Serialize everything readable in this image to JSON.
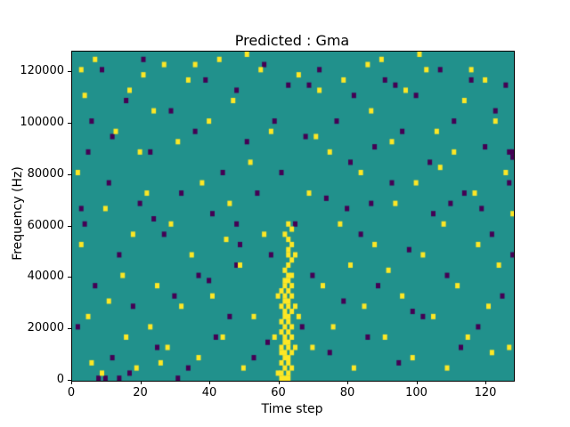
{
  "chart_data": {
    "type": "heatmap",
    "title": "Predicted : Gma",
    "xlabel": "Time step",
    "ylabel": "Frequency (Hz)",
    "xlim": [
      0,
      128
    ],
    "ylim": [
      0,
      128000
    ],
    "xticks": [
      0,
      20,
      40,
      60,
      80,
      100,
      120
    ],
    "yticks": [
      0,
      20000,
      40000,
      60000,
      80000,
      100000,
      120000
    ],
    "grid": false,
    "legend": "none",
    "colors": {
      "background": "#21918c",
      "high": "#fde725",
      "low": "#440154",
      "axes": "#000000"
    },
    "x_bins": 128,
    "y_bins": 64,
    "y_bin_hz": 2000,
    "cells_high": [
      [
        59,
        1
      ],
      [
        60,
        0
      ],
      [
        61,
        0
      ],
      [
        62,
        0
      ],
      [
        60,
        1
      ],
      [
        62,
        1
      ],
      [
        61,
        2
      ],
      [
        63,
        2
      ],
      [
        60,
        3
      ],
      [
        62,
        3
      ],
      [
        61,
        4
      ],
      [
        62,
        4
      ],
      [
        60,
        5
      ],
      [
        61,
        5
      ],
      [
        63,
        5
      ],
      [
        62,
        6
      ],
      [
        60,
        6
      ],
      [
        61,
        7
      ],
      [
        62,
        7
      ],
      [
        63,
        8
      ],
      [
        61,
        8
      ],
      [
        60,
        9
      ],
      [
        62,
        9
      ],
      [
        61,
        10
      ],
      [
        63,
        10
      ],
      [
        62,
        11
      ],
      [
        60,
        11
      ],
      [
        61,
        12
      ],
      [
        62,
        12
      ],
      [
        63,
        13
      ],
      [
        61,
        13
      ],
      [
        62,
        14
      ],
      [
        60,
        14
      ],
      [
        64,
        14
      ],
      [
        61,
        15
      ],
      [
        62,
        15
      ],
      [
        63,
        16
      ],
      [
        61,
        16
      ],
      [
        62,
        17
      ],
      [
        60,
        17
      ],
      [
        61,
        18
      ],
      [
        63,
        18
      ],
      [
        62,
        19
      ],
      [
        61,
        19
      ],
      [
        62,
        20
      ],
      [
        63,
        20
      ],
      [
        61,
        21
      ],
      [
        62,
        22
      ],
      [
        63,
        23
      ],
      [
        62,
        24
      ],
      [
        64,
        24
      ],
      [
        62,
        25
      ],
      [
        63,
        26
      ],
      [
        62,
        27
      ],
      [
        61,
        28
      ],
      [
        63,
        29
      ],
      [
        62,
        30
      ],
      [
        58,
        8
      ],
      [
        59,
        16
      ],
      [
        65,
        12
      ],
      [
        64,
        6
      ],
      [
        2,
        60
      ],
      [
        3,
        55
      ],
      [
        1,
        40
      ],
      [
        2,
        26
      ],
      [
        4,
        12
      ],
      [
        5,
        3
      ],
      [
        8,
        1
      ],
      [
        9,
        33
      ],
      [
        12,
        48
      ],
      [
        14,
        20
      ],
      [
        15,
        8
      ],
      [
        16,
        56
      ],
      [
        17,
        28
      ],
      [
        18,
        2
      ],
      [
        19,
        44
      ],
      [
        21,
        36
      ],
      [
        22,
        10
      ],
      [
        23,
        52
      ],
      [
        24,
        18
      ],
      [
        26,
        61
      ],
      [
        27,
        6
      ],
      [
        28,
        30
      ],
      [
        30,
        46
      ],
      [
        31,
        14
      ],
      [
        33,
        58
      ],
      [
        34,
        24
      ],
      [
        36,
        4
      ],
      [
        37,
        38
      ],
      [
        39,
        50
      ],
      [
        40,
        16
      ],
      [
        42,
        62
      ],
      [
        43,
        8
      ],
      [
        45,
        34
      ],
      [
        46,
        54
      ],
      [
        48,
        22
      ],
      [
        49,
        2
      ],
      [
        51,
        42
      ],
      [
        52,
        12
      ],
      [
        54,
        60
      ],
      [
        55,
        28
      ],
      [
        57,
        48
      ],
      [
        68,
        36
      ],
      [
        69,
        6
      ],
      [
        71,
        56
      ],
      [
        72,
        18
      ],
      [
        74,
        44
      ],
      [
        75,
        10
      ],
      [
        77,
        30
      ],
      [
        78,
        58
      ],
      [
        80,
        22
      ],
      [
        81,
        2
      ],
      [
        83,
        40
      ],
      [
        84,
        14
      ],
      [
        86,
        52
      ],
      [
        87,
        26
      ],
      [
        89,
        62
      ],
      [
        90,
        8
      ],
      [
        92,
        46
      ],
      [
        93,
        34
      ],
      [
        95,
        16
      ],
      [
        96,
        56
      ],
      [
        98,
        4
      ],
      [
        99,
        38
      ],
      [
        101,
        24
      ],
      [
        102,
        60
      ],
      [
        104,
        12
      ],
      [
        105,
        48
      ],
      [
        107,
        30
      ],
      [
        108,
        2
      ],
      [
        110,
        44
      ],
      [
        111,
        18
      ],
      [
        113,
        54
      ],
      [
        114,
        8
      ],
      [
        116,
        36
      ],
      [
        117,
        26
      ],
      [
        119,
        58
      ],
      [
        120,
        14
      ],
      [
        122,
        50
      ],
      [
        123,
        22
      ],
      [
        125,
        40
      ],
      [
        126,
        6
      ],
      [
        127,
        32
      ],
      [
        6,
        62
      ],
      [
        20,
        59
      ],
      [
        35,
        61
      ],
      [
        50,
        63
      ],
      [
        65,
        59
      ],
      [
        85,
        61
      ],
      [
        100,
        63
      ],
      [
        115,
        60
      ],
      [
        10,
        15
      ],
      [
        25,
        3
      ],
      [
        44,
        27
      ],
      [
        70,
        47
      ],
      [
        91,
        21
      ],
      [
        106,
        41
      ],
      [
        121,
        5
      ]
    ],
    "cells_low": [
      [
        1,
        10
      ],
      [
        3,
        30
      ],
      [
        5,
        50
      ],
      [
        6,
        18
      ],
      [
        8,
        60
      ],
      [
        10,
        38
      ],
      [
        11,
        4
      ],
      [
        13,
        24
      ],
      [
        15,
        54
      ],
      [
        17,
        14
      ],
      [
        19,
        34
      ],
      [
        20,
        62
      ],
      [
        22,
        44
      ],
      [
        24,
        6
      ],
      [
        26,
        28
      ],
      [
        28,
        52
      ],
      [
        29,
        16
      ],
      [
        31,
        36
      ],
      [
        33,
        2
      ],
      [
        35,
        48
      ],
      [
        36,
        20
      ],
      [
        38,
        58
      ],
      [
        40,
        32
      ],
      [
        41,
        8
      ],
      [
        43,
        40
      ],
      [
        45,
        12
      ],
      [
        47,
        56
      ],
      [
        47,
        30
      ],
      [
        47,
        22
      ],
      [
        48,
        26
      ],
      [
        50,
        46
      ],
      [
        52,
        4
      ],
      [
        53,
        36
      ],
      [
        55,
        61
      ],
      [
        57,
        24
      ],
      [
        58,
        50
      ],
      [
        60,
        40
      ],
      [
        62,
        57
      ],
      [
        64,
        30
      ],
      [
        66,
        10
      ],
      [
        67,
        47
      ],
      [
        69,
        20
      ],
      [
        71,
        60
      ],
      [
        73,
        35
      ],
      [
        74,
        5
      ],
      [
        76,
        50
      ],
      [
        78,
        15
      ],
      [
        80,
        42
      ],
      [
        81,
        55
      ],
      [
        83,
        28
      ],
      [
        85,
        8
      ],
      [
        87,
        45
      ],
      [
        88,
        18
      ],
      [
        90,
        58
      ],
      [
        92,
        38
      ],
      [
        94,
        3
      ],
      [
        95,
        48
      ],
      [
        97,
        25
      ],
      [
        99,
        55
      ],
      [
        101,
        12
      ],
      [
        103,
        42
      ],
      [
        104,
        32
      ],
      [
        106,
        60
      ],
      [
        108,
        20
      ],
      [
        110,
        50
      ],
      [
        112,
        6
      ],
      [
        113,
        36
      ],
      [
        115,
        58
      ],
      [
        117,
        10
      ],
      [
        119,
        45
      ],
      [
        121,
        28
      ],
      [
        122,
        52
      ],
      [
        124,
        16
      ],
      [
        126,
        38
      ],
      [
        127,
        24
      ],
      [
        127,
        43
      ],
      [
        127,
        44
      ],
      [
        126,
        44
      ],
      [
        7,
        0
      ],
      [
        9,
        0
      ],
      [
        13,
        0
      ],
      [
        30,
        0
      ],
      [
        16,
        1
      ],
      [
        2,
        33
      ],
      [
        4,
        44
      ],
      [
        11,
        47
      ],
      [
        23,
        31
      ],
      [
        39,
        19
      ],
      [
        56,
        7
      ],
      [
        68,
        57
      ],
      [
        79,
        33
      ],
      [
        86,
        34
      ],
      [
        93,
        57
      ],
      [
        98,
        13
      ],
      [
        109,
        34
      ],
      [
        118,
        33
      ],
      [
        125,
        57
      ]
    ]
  }
}
